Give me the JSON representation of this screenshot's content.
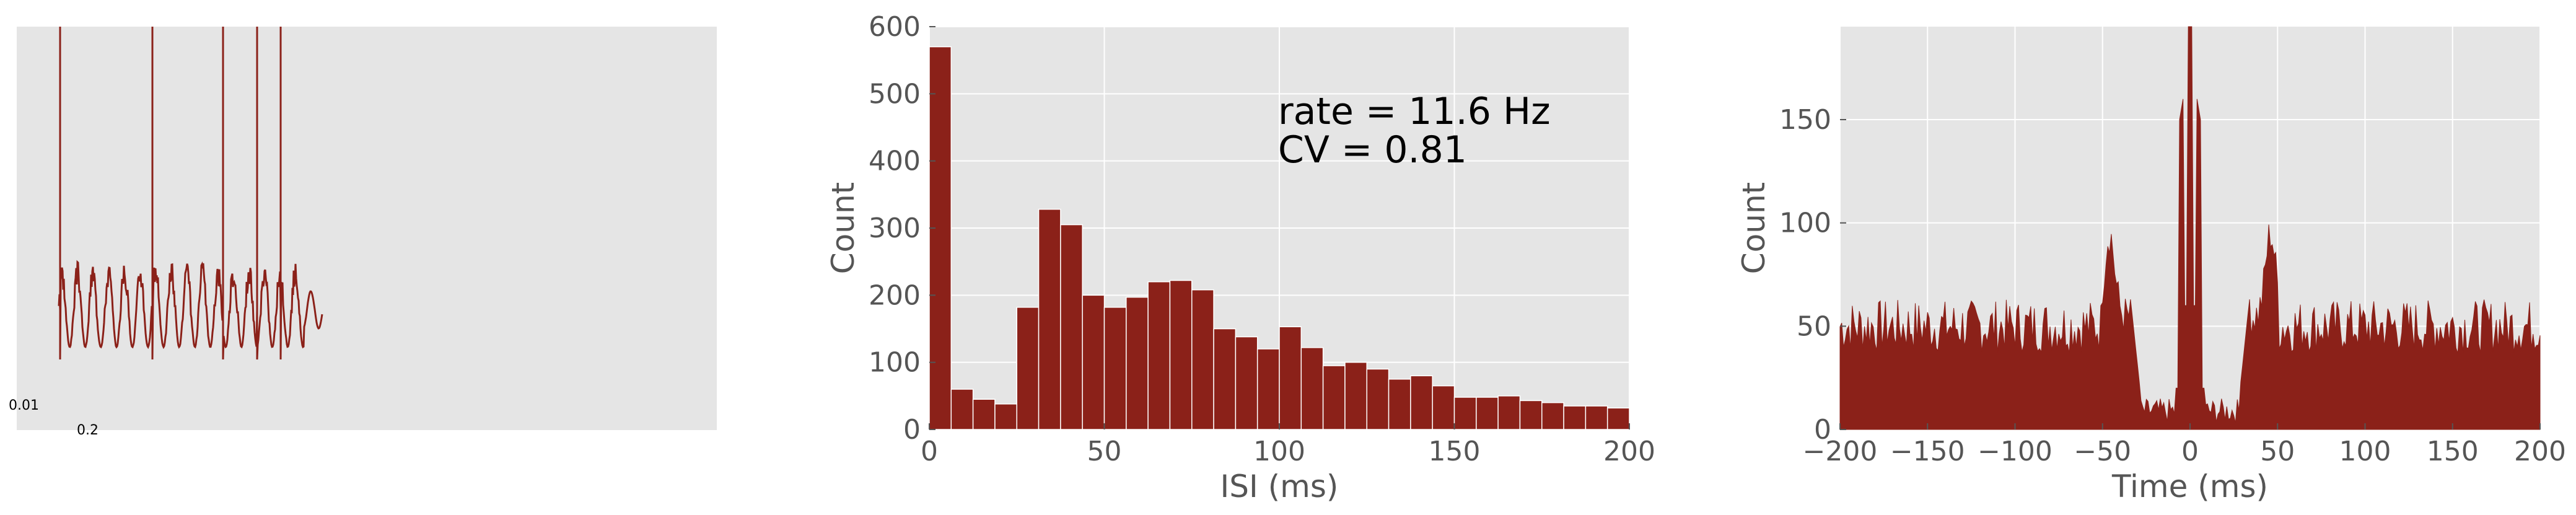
{
  "colors": {
    "bar": "#8b2119",
    "panel_bg": "#e5e5e5",
    "grid": "#ffffff"
  },
  "chart_data": [
    {
      "type": "line",
      "panel": "voltage-trace",
      "scale_bar": {
        "label_a": "0.01",
        "label_b": "0.2"
      },
      "spike_count": 5
    },
    {
      "type": "bar",
      "panel": "isi-histogram",
      "xlabel": "ISI (ms)",
      "ylabel": "Count",
      "xlim": [
        0,
        200
      ],
      "ylim": [
        0,
        600
      ],
      "xticks": [
        "0",
        "50",
        "100",
        "150",
        "200"
      ],
      "yticks": [
        "0",
        "100",
        "200",
        "300",
        "400",
        "500",
        "600"
      ],
      "bin_width": 6.25,
      "values": [
        570,
        60,
        45,
        38,
        182,
        328,
        305,
        200,
        182,
        197,
        220,
        222,
        208,
        150,
        138,
        120,
        153,
        122,
        95,
        100,
        90,
        75,
        80,
        65,
        48,
        48,
        50,
        43,
        40,
        35,
        35,
        32
      ],
      "annotations": [
        "rate = 11.6 Hz",
        "CV = 0.81"
      ],
      "grid": true
    },
    {
      "type": "area",
      "panel": "autocorrelogram",
      "xlabel": "Time (ms)",
      "ylabel": "Count",
      "xlim": [
        -200,
        200
      ],
      "ylim": [
        0,
        195
      ],
      "xticks": [
        "−200",
        "−150",
        "−100",
        "−50",
        "0",
        "50",
        "100",
        "150",
        "200"
      ],
      "yticks": [
        "0",
        "50",
        "100",
        "150"
      ],
      "baseline": 50,
      "features": [
        {
          "t": -5,
          "value": 160
        },
        {
          "t": 0,
          "value": 195
        },
        {
          "t": 5,
          "value": 158
        },
        {
          "t": -47,
          "value": 95
        },
        {
          "t": 47,
          "value": 90
        }
      ],
      "grid": true
    }
  ]
}
